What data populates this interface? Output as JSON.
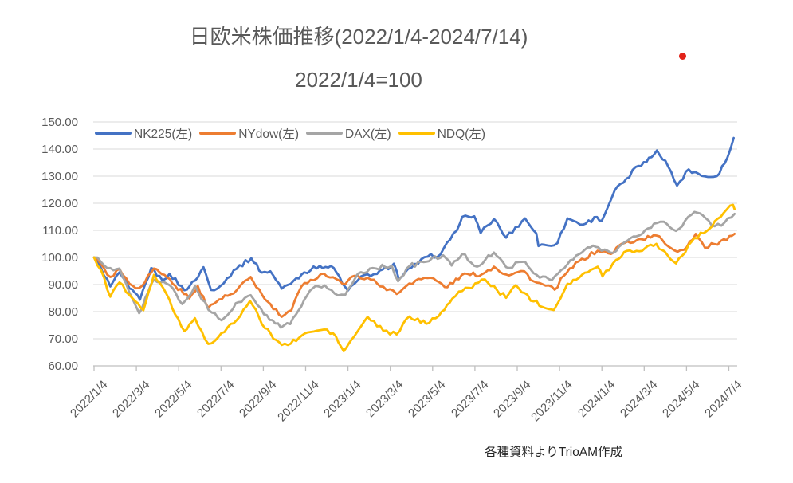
{
  "chart_data": {
    "type": "line",
    "title": "日欧米株価推移(2022/1/4-2024/7/14)",
    "subtitle": "2022/1/4=100",
    "source_note": "各種資料よりTrioAM作成",
    "x_unit": "months since 2022/1/4",
    "xlim_months": [
      0,
      30.33
    ],
    "ylim": [
      60,
      150
    ],
    "y_ticks": [
      60,
      70,
      80,
      90,
      100,
      110,
      120,
      130,
      140,
      150
    ],
    "y_tick_format": "0.00",
    "x_tick_positions": [
      0,
      2,
      4,
      6,
      8,
      10,
      12,
      14,
      16,
      18,
      20,
      22,
      24,
      26,
      28,
      30
    ],
    "x_tick_labels": [
      "2022/1/4",
      "2022/3/4",
      "2022/5/4",
      "2022/7/4",
      "2022/9/4",
      "2022/11/4",
      "2023/1/4",
      "2023/3/4",
      "2023/5/4",
      "2023/7/4",
      "2023/9/4",
      "2023/11/4",
      "2024/1/4",
      "2024/3/4",
      "2024/5/4",
      "2024/7/4"
    ],
    "grid": "horizontal",
    "legend_position": "top-left-inside",
    "colors": {
      "grid": "#d9d9d9",
      "axis": "#bfbfbf",
      "text": "#595959",
      "source_text": "#262626",
      "marker_dot": "#e2231a"
    },
    "series": [
      {
        "id": "nk225",
        "name": "NK225(左)",
        "color": "#4472c4",
        "points": [
          [
            0,
            100
          ],
          [
            0.33,
            96
          ],
          [
            0.77,
            89.3
          ],
          [
            1.2,
            94.5
          ],
          [
            1.67,
            88.6
          ],
          [
            2.17,
            84.4
          ],
          [
            2.7,
            96.1
          ],
          [
            3.23,
            91.5
          ],
          [
            3.57,
            94
          ],
          [
            4.27,
            87.9
          ],
          [
            4.77,
            91.4
          ],
          [
            5.17,
            96.4
          ],
          [
            5.53,
            88
          ],
          [
            6.13,
            90.5
          ],
          [
            6.6,
            95.3
          ],
          [
            7.43,
            99.7
          ],
          [
            7.93,
            94.4
          ],
          [
            8.33,
            94.9
          ],
          [
            8.87,
            88.5
          ],
          [
            9.43,
            91.4
          ],
          [
            9.93,
            94.5
          ],
          [
            10.67,
            96.9
          ],
          [
            11.33,
            96.1
          ],
          [
            11.87,
            89.1
          ],
          [
            12,
            87.8
          ],
          [
            12.77,
            93.5
          ],
          [
            13.37,
            93.9
          ],
          [
            14.17,
            97.7
          ],
          [
            14.4,
            92.2
          ],
          [
            15,
            96.2
          ],
          [
            15.77,
            100.3
          ],
          [
            16.37,
            101.1
          ],
          [
            16.83,
            106.6
          ],
          [
            17.3,
            112.7
          ],
          [
            17.4,
            115
          ],
          [
            17.97,
            115.2
          ],
          [
            18.27,
            109
          ],
          [
            18.9,
            114.2
          ],
          [
            19.47,
            107.3
          ],
          [
            20.37,
            114.4
          ],
          [
            20.9,
            108.9
          ],
          [
            21,
            104.2
          ],
          [
            21.9,
            105.3
          ],
          [
            22.37,
            114.4
          ],
          [
            23.1,
            112.1
          ],
          [
            23.77,
            114.9
          ],
          [
            24,
            113.6
          ],
          [
            24.6,
            124.7
          ],
          [
            25.3,
            129.6
          ],
          [
            25.6,
            133.4
          ],
          [
            26.1,
            135.1
          ],
          [
            26.6,
            139.5
          ],
          [
            27,
            135.7
          ],
          [
            27.55,
            126.5
          ],
          [
            28.1,
            132.5
          ],
          [
            28.87,
            129.9
          ],
          [
            29.43,
            130
          ],
          [
            29.93,
            136.8
          ],
          [
            30.23,
            144.1
          ]
        ]
      },
      {
        "id": "nydow",
        "name": "NYdow(左)",
        "color": "#ed7d31",
        "points": [
          [
            0,
            100
          ],
          [
            0.33,
            97.6
          ],
          [
            0.77,
            92.8
          ],
          [
            1.2,
            95.8
          ],
          [
            1.67,
            90.3
          ],
          [
            2.13,
            88.7
          ],
          [
            2.83,
            95.9
          ],
          [
            3.33,
            93.6
          ],
          [
            3.83,
            89.6
          ],
          [
            4.5,
            84.9
          ],
          [
            4.9,
            89.6
          ],
          [
            5.4,
            81.3
          ],
          [
            5.9,
            84.5
          ],
          [
            6.6,
            86.7
          ],
          [
            7.4,
            92.8
          ],
          [
            8.07,
            84.6
          ],
          [
            8.87,
            78.1
          ],
          [
            9.33,
            80.5
          ],
          [
            9.8,
            89.3
          ],
          [
            10.23,
            91.7
          ],
          [
            10.87,
            94
          ],
          [
            11.3,
            92.7
          ],
          [
            11.87,
            90.1
          ],
          [
            12.3,
            93.2
          ],
          [
            12.93,
            92.5
          ],
          [
            13.67,
            89.2
          ],
          [
            14.3,
            86.5
          ],
          [
            14.9,
            90.4
          ],
          [
            15.33,
            92.1
          ],
          [
            15.9,
            92.5
          ],
          [
            16.7,
            89
          ],
          [
            17.37,
            93.5
          ],
          [
            18.33,
            93.8
          ],
          [
            18.9,
            96.6
          ],
          [
            19.47,
            93.7
          ],
          [
            20.33,
            94.9
          ],
          [
            20.77,
            91.2
          ],
          [
            21.77,
            88.1
          ],
          [
            22.2,
            93.2
          ],
          [
            22.9,
            98.5
          ],
          [
            23.8,
            102.5
          ],
          [
            24.43,
            101.3
          ],
          [
            24.93,
            105
          ],
          [
            25.63,
            106.3
          ],
          [
            26.57,
            108.1
          ],
          [
            27.43,
            102.6
          ],
          [
            27.87,
            102.8
          ],
          [
            28.43,
            108.7
          ],
          [
            28.87,
            103.6
          ],
          [
            29.33,
            104.9
          ],
          [
            29.9,
            106.4
          ],
          [
            30.27,
            108.7
          ]
        ]
      },
      {
        "id": "dax",
        "name": "DAX(左)",
        "color": "#a5a5a5",
        "points": [
          [
            0,
            100
          ],
          [
            0.33,
            98.3
          ],
          [
            0.77,
            96.1
          ],
          [
            1.2,
            95.9
          ],
          [
            1.67,
            87
          ],
          [
            2.13,
            79.4
          ],
          [
            2.83,
            91.8
          ],
          [
            3.57,
            89.8
          ],
          [
            4.17,
            82.8
          ],
          [
            4.77,
            89.5
          ],
          [
            5.4,
            80.7
          ],
          [
            6.03,
            76.8
          ],
          [
            6.83,
            83.5
          ],
          [
            7.4,
            86.1
          ],
          [
            8.03,
            79
          ],
          [
            8.83,
            74.1
          ],
          [
            9.27,
            75.4
          ],
          [
            9.8,
            82
          ],
          [
            10.33,
            88.6
          ],
          [
            10.9,
            89.7
          ],
          [
            11.53,
            86
          ],
          [
            11.87,
            86.2
          ],
          [
            12.47,
            94
          ],
          [
            13.17,
            96.1
          ],
          [
            14.07,
            96.9
          ],
          [
            14.37,
            91.2
          ],
          [
            14.9,
            96.8
          ],
          [
            15.57,
            98.3
          ],
          [
            16.5,
            100.8
          ],
          [
            16.9,
            97
          ],
          [
            17.4,
            101.3
          ],
          [
            18.1,
            96.6
          ],
          [
            18.9,
            101.8
          ],
          [
            19.47,
            96.4
          ],
          [
            20.37,
            98.4
          ],
          [
            20.77,
            94.2
          ],
          [
            21.63,
            91.6
          ],
          [
            22.37,
            97.5
          ],
          [
            23.33,
            103.7
          ],
          [
            23.83,
            103.7
          ],
          [
            24.43,
            101.7
          ],
          [
            24.93,
            104.7
          ],
          [
            25.63,
            107.8
          ],
          [
            26.6,
            112.7
          ],
          [
            26.93,
            113.2
          ],
          [
            27.5,
            109.8
          ],
          [
            28.37,
            116.8
          ],
          [
            28.9,
            114.5
          ],
          [
            29.33,
            111.5
          ],
          [
            29.8,
            112.9
          ],
          [
            30.27,
            116.1
          ]
        ]
      },
      {
        "id": "ndq",
        "name": "NDQ(左)",
        "color": "#ffc000",
        "points": [
          [
            0,
            100
          ],
          [
            0.33,
            95.3
          ],
          [
            0.77,
            85.5
          ],
          [
            1.2,
            90.8
          ],
          [
            1.67,
            86.2
          ],
          [
            2.33,
            80.5
          ],
          [
            2.83,
            93.6
          ],
          [
            3.57,
            84.3
          ],
          [
            3.83,
            79
          ],
          [
            4.27,
            72.8
          ],
          [
            4.77,
            77.6
          ],
          [
            5.4,
            68.1
          ],
          [
            5.87,
            70.6
          ],
          [
            6.6,
            75.7
          ],
          [
            7.37,
            84
          ],
          [
            8.07,
            73.9
          ],
          [
            8.87,
            67.7
          ],
          [
            9.3,
            68.2
          ],
          [
            9.8,
            71.1
          ],
          [
            10.23,
            72.5
          ],
          [
            10.87,
            73.4
          ],
          [
            11.3,
            72
          ],
          [
            11.8,
            65.4
          ],
          [
            12.3,
            70.9
          ],
          [
            12.93,
            78.1
          ],
          [
            13.67,
            72.9
          ],
          [
            14.3,
            71.6
          ],
          [
            14.9,
            78.2
          ],
          [
            15.7,
            75.5
          ],
          [
            16.43,
            80
          ],
          [
            16.93,
            84.8
          ],
          [
            17.4,
            87.6
          ],
          [
            18.47,
            91.9
          ],
          [
            19.47,
            85.1
          ],
          [
            19.93,
            89.8
          ],
          [
            20.77,
            83.8
          ],
          [
            21.73,
            80.6
          ],
          [
            22.37,
            90.3
          ],
          [
            23.33,
            94.5
          ],
          [
            23.8,
            96.6
          ],
          [
            24.03,
            93
          ],
          [
            24.67,
            99.1
          ],
          [
            25.17,
            102.4
          ],
          [
            25.63,
            102.4
          ],
          [
            26.57,
            105
          ],
          [
            27.5,
            97.8
          ],
          [
            28.37,
            107.2
          ],
          [
            28.8,
            108.9
          ],
          [
            29.47,
            114.3
          ],
          [
            30.2,
            119.4
          ],
          [
            30.27,
            117.8
          ]
        ]
      }
    ]
  }
}
